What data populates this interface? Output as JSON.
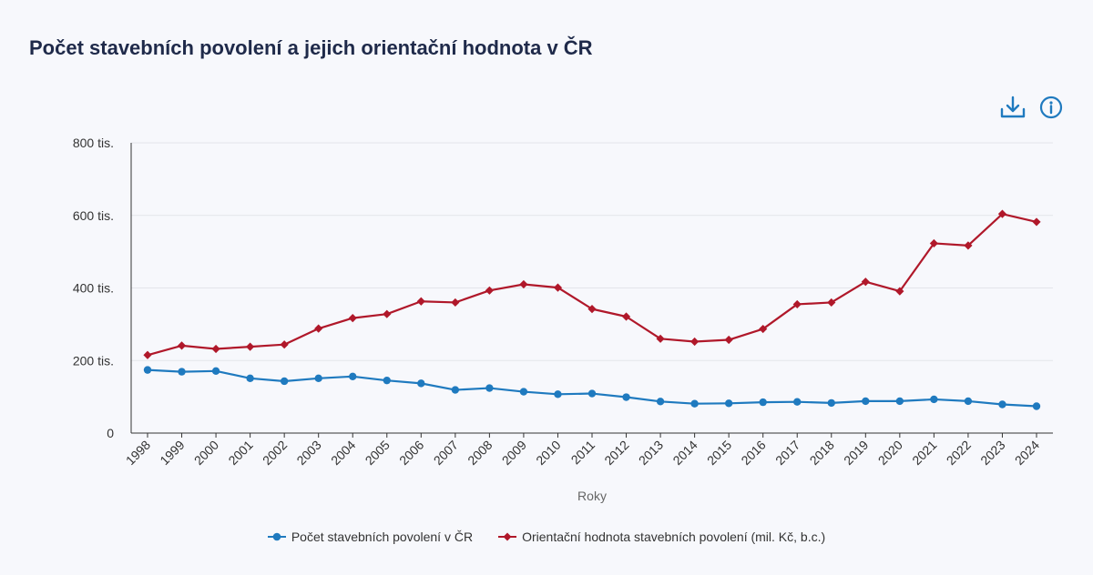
{
  "title": "Počet stavebních povolení a jejich orientační hodnota v ČR",
  "tools": {
    "download_icon": "download-icon",
    "info_icon": "info-icon"
  },
  "colors": {
    "blue": "#1f7abf",
    "red": "#b0182a",
    "axis": "#333333",
    "grid": "#e3e5ea",
    "tick_text": "#333333"
  },
  "chart_data": {
    "type": "line",
    "xlabel": "Roky",
    "ylabel": "",
    "ylim": [
      0,
      800000
    ],
    "yticks": [
      {
        "value": 0,
        "label": "0"
      },
      {
        "value": 200000,
        "label": "200 tis."
      },
      {
        "value": 400000,
        "label": "400 tis."
      },
      {
        "value": 600000,
        "label": "600 tis."
      },
      {
        "value": 800000,
        "label": "800 tis."
      }
    ],
    "grid": true,
    "legend_position": "bottom",
    "categories": [
      "1998",
      "1999",
      "2000",
      "2001",
      "2002",
      "2003",
      "2004",
      "2005",
      "2006",
      "2007",
      "2008",
      "2009",
      "2010",
      "2011",
      "2012",
      "2013",
      "2014",
      "2015",
      "2016",
      "2017",
      "2018",
      "2019",
      "2020",
      "2021",
      "2022",
      "2023",
      "2024"
    ],
    "series": [
      {
        "name": "Počet stavebních povolení v ČR",
        "color": "#1f7abf",
        "marker": "circle",
        "values": [
          174000,
          169000,
          171000,
          151000,
          143000,
          151000,
          156000,
          145000,
          137000,
          119000,
          124000,
          114000,
          107000,
          109000,
          99000,
          87000,
          81000,
          82000,
          85000,
          86000,
          83000,
          88000,
          88000,
          93000,
          88000,
          79000,
          74000
        ]
      },
      {
        "name": "Orientační hodnota stavebních povolení (mil. Kč, b.c.)",
        "color": "#b0182a",
        "marker": "diamond",
        "values": [
          215000,
          241000,
          232000,
          238000,
          244000,
          288000,
          317000,
          328000,
          363000,
          360000,
          393000,
          410000,
          401000,
          342000,
          321000,
          260000,
          252000,
          257000,
          287000,
          355000,
          360000,
          417000,
          391000,
          523000,
          517000,
          604000,
          582000
        ]
      }
    ]
  }
}
